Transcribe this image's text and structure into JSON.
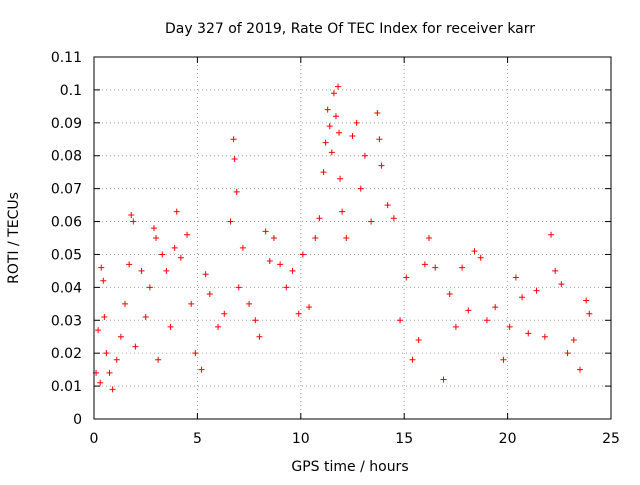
{
  "chart_data": {
    "type": "scatter",
    "title": "Day 327 of 2019, Rate Of TEC Index for receiver karr",
    "xlabel": "GPS time / hours",
    "ylabel": "ROTI / TECUs",
    "xlim": [
      0,
      25
    ],
    "ylim": [
      0,
      0.11
    ],
    "x_ticks": [
      "0",
      "5",
      "10",
      "15",
      "20",
      "25"
    ],
    "y_ticks": [
      "0",
      "0.01",
      "0.02",
      "0.03",
      "0.04",
      "0.05",
      "0.06",
      "0.07",
      "0.08",
      "0.09",
      "0.1",
      "0.11"
    ],
    "x_tick_values": [
      0,
      5,
      10,
      15,
      20,
      25
    ],
    "y_tick_values": [
      0,
      0.01,
      0.02,
      0.03,
      0.04,
      0.05,
      0.06,
      0.07,
      0.08,
      0.09,
      0.1,
      0.11
    ],
    "grid": true,
    "marker": "plus",
    "marker_color": "#ff0000",
    "points": [
      [
        0.1,
        0.014
      ],
      [
        0.2,
        0.027
      ],
      [
        0.3,
        0.011
      ],
      [
        0.35,
        0.046
      ],
      [
        0.45,
        0.042
      ],
      [
        0.5,
        0.031
      ],
      [
        0.6,
        0.02
      ],
      [
        0.75,
        0.014
      ],
      [
        0.9,
        0.009
      ],
      [
        1.1,
        0.018
      ],
      [
        1.3,
        0.025
      ],
      [
        1.5,
        0.035
      ],
      [
        1.7,
        0.047
      ],
      [
        1.8,
        0.062
      ],
      [
        1.9,
        0.06
      ],
      [
        2.0,
        0.022
      ],
      [
        2.3,
        0.045
      ],
      [
        2.5,
        0.031
      ],
      [
        2.7,
        0.04
      ],
      [
        2.9,
        0.058
      ],
      [
        3.0,
        0.055
      ],
      [
        3.1,
        0.018
      ],
      [
        3.3,
        0.05
      ],
      [
        3.5,
        0.045
      ],
      [
        3.7,
        0.028
      ],
      [
        3.9,
        0.052
      ],
      [
        4.0,
        0.063
      ],
      [
        4.2,
        0.049
      ],
      [
        4.5,
        0.056
      ],
      [
        4.7,
        0.035
      ],
      [
        4.9,
        0.02
      ],
      [
        5.2,
        0.015
      ],
      [
        5.4,
        0.044
      ],
      [
        5.6,
        0.038
      ],
      [
        6.0,
        0.028
      ],
      [
        6.3,
        0.032
      ],
      [
        6.6,
        0.06
      ],
      [
        6.75,
        0.085
      ],
      [
        6.8,
        0.079
      ],
      [
        6.9,
        0.069
      ],
      [
        7.0,
        0.04
      ],
      [
        7.2,
        0.052
      ],
      [
        7.5,
        0.035
      ],
      [
        7.8,
        0.03
      ],
      [
        8.0,
        0.025
      ],
      [
        8.3,
        0.057
      ],
      [
        8.5,
        0.048
      ],
      [
        8.7,
        0.055
      ],
      [
        9.0,
        0.047
      ],
      [
        9.3,
        0.04
      ],
      [
        9.6,
        0.045
      ],
      [
        9.9,
        0.032
      ],
      [
        10.1,
        0.05
      ],
      [
        10.4,
        0.034
      ],
      [
        10.7,
        0.055
      ],
      [
        10.9,
        0.061
      ],
      [
        11.1,
        0.075
      ],
      [
        11.2,
        0.084
      ],
      [
        11.3,
        0.094
      ],
      [
        11.4,
        0.089
      ],
      [
        11.5,
        0.081
      ],
      [
        11.6,
        0.099
      ],
      [
        11.7,
        0.092
      ],
      [
        11.8,
        0.101
      ],
      [
        11.85,
        0.087
      ],
      [
        11.9,
        0.073
      ],
      [
        12.0,
        0.063
      ],
      [
        12.2,
        0.055
      ],
      [
        12.5,
        0.086
      ],
      [
        12.7,
        0.09
      ],
      [
        12.9,
        0.07
      ],
      [
        13.1,
        0.08
      ],
      [
        13.4,
        0.06
      ],
      [
        13.7,
        0.093
      ],
      [
        13.8,
        0.085
      ],
      [
        13.9,
        0.077
      ],
      [
        14.2,
        0.065
      ],
      [
        14.5,
        0.061
      ],
      [
        14.8,
        0.03
      ],
      [
        15.1,
        0.043
      ],
      [
        15.4,
        0.018
      ],
      [
        15.7,
        0.024
      ],
      [
        16.0,
        0.047
      ],
      [
        16.2,
        0.055
      ],
      [
        16.5,
        0.046
      ],
      [
        16.9,
        0.012
      ],
      [
        17.2,
        0.038
      ],
      [
        17.5,
        0.028
      ],
      [
        17.8,
        0.046
      ],
      [
        18.1,
        0.033
      ],
      [
        18.4,
        0.051
      ],
      [
        18.7,
        0.049
      ],
      [
        19.0,
        0.03
      ],
      [
        19.4,
        0.034
      ],
      [
        19.8,
        0.018
      ],
      [
        20.1,
        0.028
      ],
      [
        20.4,
        0.043
      ],
      [
        20.7,
        0.037
      ],
      [
        21.0,
        0.026
      ],
      [
        21.4,
        0.039
      ],
      [
        21.8,
        0.025
      ],
      [
        22.1,
        0.056
      ],
      [
        22.3,
        0.045
      ],
      [
        22.6,
        0.041
      ],
      [
        22.9,
        0.02
      ],
      [
        23.2,
        0.024
      ],
      [
        23.5,
        0.015
      ],
      [
        23.8,
        0.036
      ],
      [
        23.95,
        0.032
      ]
    ]
  }
}
